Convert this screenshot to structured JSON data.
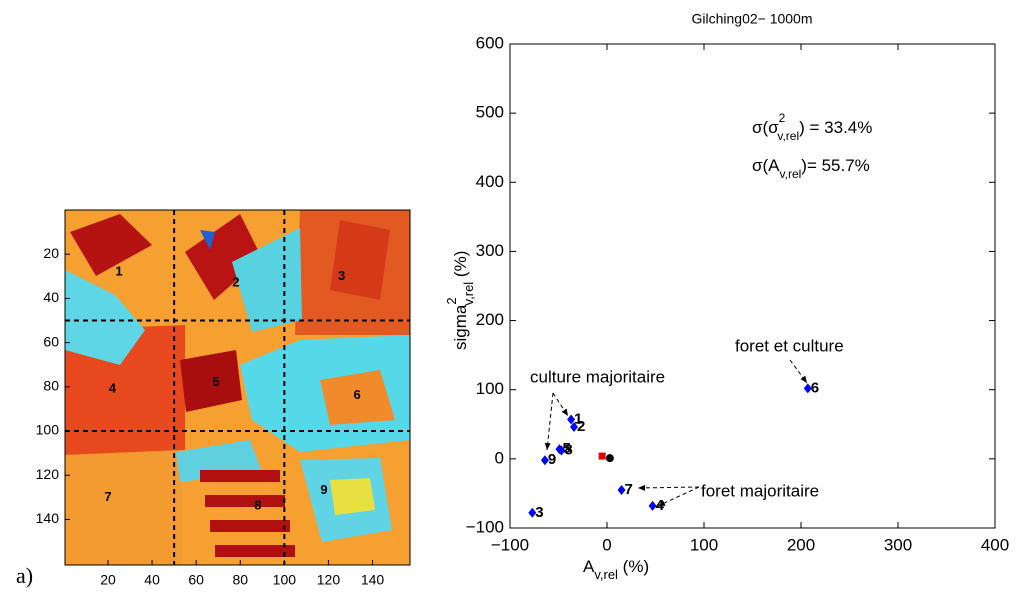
{
  "chart_data": [
    {
      "type": "image",
      "xlim": [
        0.5,
        157
      ],
      "ylim": [
        0,
        160.6
      ],
      "xticks": [
        20,
        40,
        60,
        80,
        100,
        120,
        140
      ],
      "yticks": [
        20,
        40,
        60,
        80,
        100,
        120,
        140
      ],
      "dividers": {
        "x": [
          50,
          100
        ],
        "y": [
          50,
          100
        ]
      },
      "regions": [
        {
          "label": "1",
          "x": 25,
          "y": 28
        },
        {
          "label": "2",
          "x": 78,
          "y": 33
        },
        {
          "label": "3",
          "x": 126,
          "y": 30
        },
        {
          "label": "4",
          "x": 22,
          "y": 81
        },
        {
          "label": "5",
          "x": 69,
          "y": 78
        },
        {
          "label": "6",
          "x": 133,
          "y": 84
        },
        {
          "label": "7",
          "x": 20,
          "y": 130
        },
        {
          "label": "8",
          "x": 88,
          "y": 134
        },
        {
          "label": "9",
          "x": 118,
          "y": 127
        }
      ],
      "panel_label": "a)"
    },
    {
      "type": "scatter",
      "title": "Gilching02− 1000m",
      "x_label": {
        "base": "A",
        "sub": "v,rel",
        "suffix": " (%)"
      },
      "y_label": {
        "base": "sigma",
        "sup": "2",
        "sub": "v,rel",
        "suffix": " (%)"
      },
      "xlim": [
        -100,
        400
      ],
      "ylim": [
        -100,
        600
      ],
      "xticks": [
        {
          "value": -100,
          "label": "−100"
        },
        0,
        100,
        200,
        300,
        400
      ],
      "yticks": [
        {
          "value": -100,
          "label": "−100"
        },
        0,
        100,
        200,
        300,
        400,
        500,
        600
      ],
      "series": [
        {
          "color": "#0000ff",
          "marker": "diamond",
          "x": [
            -37,
            -34,
            -77,
            47,
            -49,
            207,
            15,
            -47,
            -64
          ],
          "values": [
            57,
            46,
            -78,
            -68,
            14,
            102,
            -45,
            12,
            -2
          ],
          "labels": [
            "1",
            "2",
            "3",
            "4",
            "5",
            "6",
            "7",
            "8",
            "9"
          ]
        },
        {
          "color": "#e00000",
          "marker": "square",
          "x": [
            -5
          ],
          "values": [
            4
          ]
        },
        {
          "color": "#000000",
          "marker": "circle",
          "x": [
            3
          ],
          "values": [
            1
          ]
        }
      ],
      "stats": [
        {
          "a": "σ(σ",
          "sup": "2",
          "sub": "v,rel",
          "rest": ") = 33.4%"
        },
        {
          "a": "σ(A",
          "sub": "v,rel",
          "rest": ")=  55.7%"
        }
      ],
      "annotations": [
        "culture majoritaire",
        "foret  majoritaire",
        "foret et culture"
      ]
    }
  ]
}
